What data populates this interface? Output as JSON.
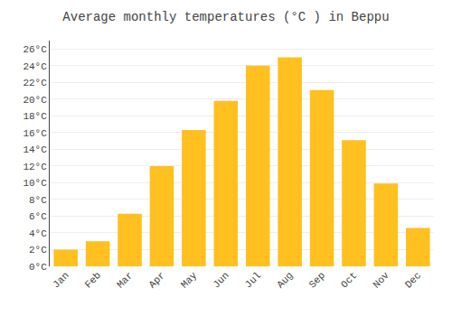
{
  "chart_data": {
    "type": "bar",
    "title": "Average monthly temperatures (°C ) in Beppu",
    "categories": [
      "Jan",
      "Feb",
      "Mar",
      "Apr",
      "May",
      "Jun",
      "Jul",
      "Aug",
      "Sep",
      "Oct",
      "Nov",
      "Dec"
    ],
    "values": [
      2.0,
      3.0,
      6.3,
      12.0,
      16.3,
      19.8,
      24.0,
      25.0,
      21.1,
      15.1,
      9.9,
      4.6
    ],
    "color": "#FFC020",
    "ylim": [
      0,
      27
    ],
    "yticks": [
      {
        "value": 0,
        "label": "0°C"
      },
      {
        "value": 2,
        "label": "2°C"
      },
      {
        "value": 4,
        "label": "4°C"
      },
      {
        "value": 6,
        "label": "6°C"
      },
      {
        "value": 8,
        "label": "8°C"
      },
      {
        "value": 10,
        "label": "10°C"
      },
      {
        "value": 12,
        "label": "12°C"
      },
      {
        "value": 14,
        "label": "14°C"
      },
      {
        "value": 16,
        "label": "16°C"
      },
      {
        "value": 18,
        "label": "18°C"
      },
      {
        "value": 20,
        "label": "20°C"
      },
      {
        "value": 22,
        "label": "22°C"
      },
      {
        "value": 24,
        "label": "24°C"
      },
      {
        "value": 26,
        "label": "26°C"
      }
    ],
    "grid": true
  }
}
